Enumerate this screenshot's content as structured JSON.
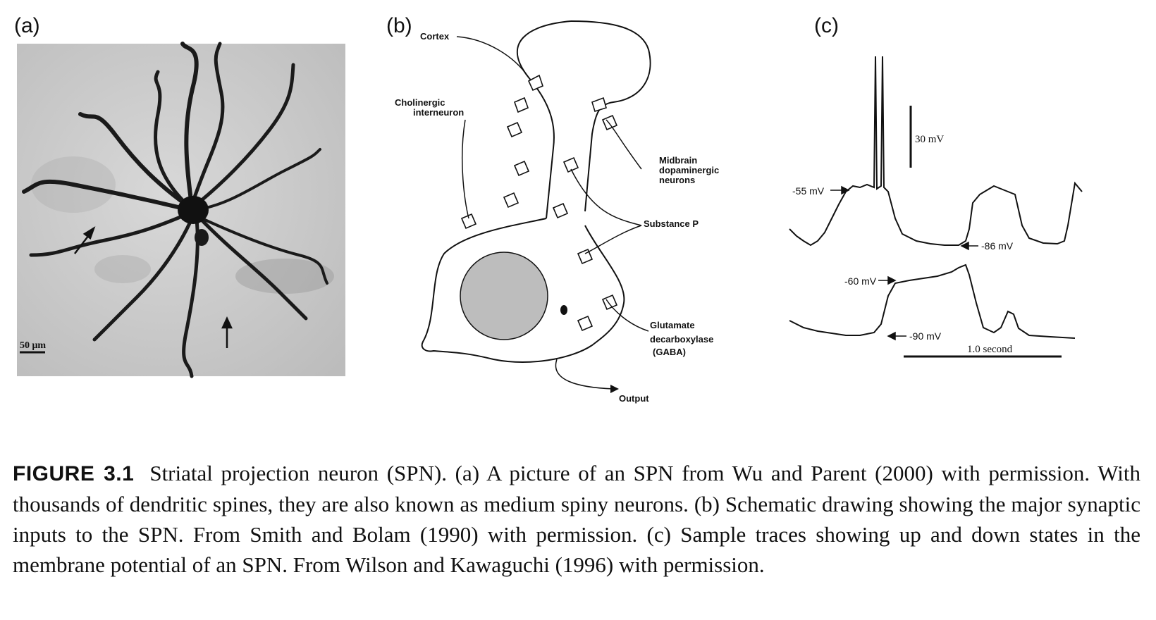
{
  "panels": {
    "a": {
      "label": "(a)",
      "scale_bar": "50 μm"
    },
    "b": {
      "label": "(b)",
      "labels": {
        "cortex": "Cortex",
        "cholinergic_1": "Cholinergic",
        "cholinergic_2": "interneuron",
        "midbrain_1": "Midbrain",
        "midbrain_2": "dopaminergic",
        "midbrain_3": "neurons",
        "substance_p": "Substance P",
        "gad_1": "Glutamate",
        "gad_2": "decarboxylase",
        "gad_3": "(GABA)",
        "output": "Output"
      }
    },
    "c": {
      "label": "(c)",
      "scale_v": "30 mV",
      "scale_t": "1.0 second",
      "trace1": {
        "up": "-55 mV",
        "down": "-86 mV"
      },
      "trace2": {
        "up": "-60 mV",
        "down": "-90 mV"
      }
    }
  },
  "caption": {
    "figure_label": "FIGURE 3.1",
    "text": "Striatal projection neuron (SPN). (a) A picture of an SPN from Wu and Parent (2000) with permission. With thousands of dendritic spines, they are also known as medium spiny neurons. (b) Schematic drawing showing the major synaptic inputs to the SPN. From Smith and Bolam (1990) with permission. (c) Sample traces showing up and down states in the membrane potential of an SPN. From Wilson and Kawaguchi (1996) with permission."
  }
}
